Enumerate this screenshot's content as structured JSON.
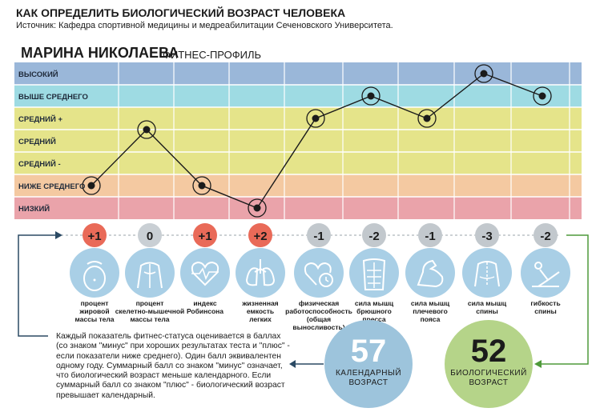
{
  "header": {
    "title": "КАК ОПРЕДЕЛИТЬ БИОЛОГИЧЕСКИЙ ВОЗРАСТ ЧЕЛОВЕКА",
    "source": "Источник: Кафедра спортивной медицины и медреабилитации Сеченовского Университета."
  },
  "profile": {
    "name": "МАРИНА НИКОЛАЕВА",
    "subtitle": "ФИТНЕС-ПРОФИЛЬ"
  },
  "chart_data": {
    "type": "line",
    "bands": [
      {
        "label": "ВЫСОКИЙ",
        "color": "#9ab7d9"
      },
      {
        "label": "ВЫШЕ СРЕДНЕГО",
        "color": "#9edbe3"
      },
      {
        "label": "СРЕДНИЙ +",
        "color": "#e5e48a"
      },
      {
        "label": "СРЕДНИЙ",
        "color": "#e5e48a"
      },
      {
        "label": "СРЕДНИЙ -",
        "color": "#e5e48a"
      },
      {
        "label": "НИЖЕ СРЕДНЕГО",
        "color": "#f4c9a1"
      },
      {
        "label": "НИЗКИЙ",
        "color": "#eaa3aa"
      }
    ],
    "categories": [
      "процент жировой массы тела",
      "процент скелетно-мышечной массы тела",
      "индекс Робинсона",
      "жизненная емкость легких",
      "физическая работоспособность (общая выносливость)",
      "сила мышц брюшного пресса",
      "сила мышц плечевого пояса",
      "сила мышц спины",
      "гибкость спины"
    ],
    "category_lines": [
      [
        "процент",
        "жировой",
        "массы тела"
      ],
      [
        "процент",
        "скелетно-мышечной",
        "массы тела"
      ],
      [
        "индекс",
        "Робинсона"
      ],
      [
        "жизненная",
        "емкость",
        "легких"
      ],
      [
        "физическая",
        "работоспособность",
        "(общая выносливость)"
      ],
      [
        "сила мышц",
        "брюшного",
        "пресса"
      ],
      [
        "сила мышц",
        "плечевого",
        "пояса"
      ],
      [
        "сила мышц",
        "спины"
      ],
      [
        "гибкость",
        "спины"
      ]
    ],
    "values": [
      1.5,
      4.0,
      1.5,
      0.5,
      4.5,
      5.5,
      4.5,
      6.5,
      5.5
    ],
    "scores": [
      "+1",
      "0",
      "+1",
      "+2",
      "-1",
      "-2",
      "-1",
      "-3",
      "-2"
    ],
    "icons": [
      "belly-icon",
      "back-muscles-icon",
      "heart-pulse-icon",
      "lungs-icon",
      "heart-clock-icon",
      "abs-icon",
      "biceps-icon",
      "back-spine-icon",
      "stretching-icon"
    ],
    "colors": {
      "positive": "#e96a58",
      "zero": "#c9cfd4",
      "negative": "#c2c8cd"
    }
  },
  "note": "Каждый показатель фитнес-статуса оценивается в баллах (со знаком \"минус\" при хороших результатах теста и \"плюс\" - если показатели ниже среднего). Один балл эквивалентен одному году. Суммарный балл со знаком \"минус\" означает, что биологический возраст меньше календарного. Если суммарный балл со знаком \"плюс\" - биологический возраст превышает календарный.",
  "calendar_age": {
    "value": "57",
    "caption": "КАЛЕНДАРНЫЙ ВОЗРАСТ"
  },
  "bio_age": {
    "value": "52",
    "caption": "БИОЛОГИЧЕСКИЙ ВОЗРАСТ"
  }
}
